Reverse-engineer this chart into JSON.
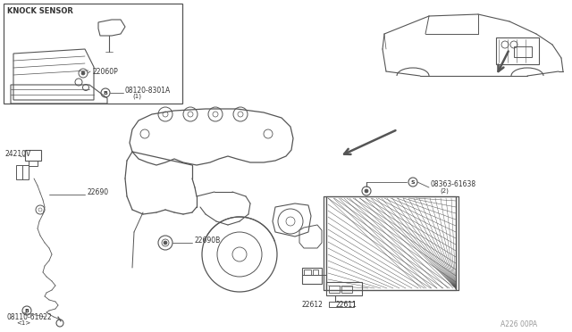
{
  "bg_color": "#ffffff",
  "line_color": "#555555",
  "text_color": "#333333",
  "fig_width": 6.4,
  "fig_height": 3.72,
  "dpi": 100,
  "labels": {
    "knock_sensor": "KNOCK SENSOR",
    "part_22060P": "22060P",
    "part_22690": "22690",
    "part_22690B": "22690B",
    "part_24210V": "24210V",
    "part_22611": "22611",
    "part_22612": "22612",
    "watermark": "A226 00PA"
  }
}
